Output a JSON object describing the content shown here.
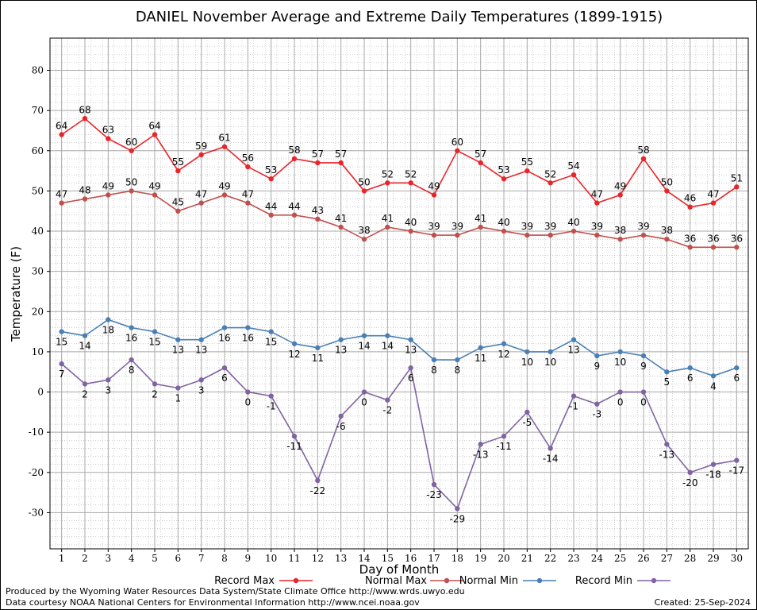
{
  "chart_data": {
    "type": "line",
    "title": "DANIEL November Average and Extreme Daily Temperatures (1899-1915)",
    "xlabel": "Day of Month",
    "ylabel": "Temperature (F)",
    "x": [
      1,
      2,
      3,
      4,
      5,
      6,
      7,
      8,
      9,
      10,
      11,
      12,
      13,
      14,
      15,
      16,
      17,
      18,
      19,
      20,
      21,
      22,
      23,
      24,
      25,
      26,
      27,
      28,
      29,
      30
    ],
    "ylim": [
      -39,
      88
    ],
    "yticks": [
      -30,
      -20,
      -10,
      0,
      10,
      20,
      30,
      40,
      50,
      60,
      70,
      80
    ],
    "grid": true,
    "legend_placement": "bottom",
    "series": [
      {
        "name": "Record Max",
        "color": "#e8252a",
        "values": [
          64,
          68,
          63,
          60,
          64,
          55,
          59,
          61,
          56,
          53,
          58,
          57,
          57,
          50,
          52,
          52,
          49,
          60,
          57,
          53,
          55,
          52,
          54,
          47,
          49,
          58,
          50,
          46,
          47,
          51
        ]
      },
      {
        "name": "Normal Max",
        "color": "#c0504d",
        "values": [
          47,
          48,
          49,
          50,
          49,
          45,
          47,
          49,
          47,
          44,
          44,
          43,
          41,
          38,
          41,
          40,
          39,
          39,
          41,
          40,
          39,
          39,
          40,
          39,
          38,
          39,
          38,
          36,
          36,
          36
        ]
      },
      {
        "name": "Normal Min",
        "color": "#4a7fb5",
        "values": [
          15,
          14,
          18,
          16,
          15,
          13,
          13,
          16,
          16,
          15,
          12,
          11,
          13,
          14,
          14,
          13,
          8,
          8,
          11,
          12,
          10,
          10,
          13,
          9,
          10,
          9,
          5,
          6,
          4,
          6
        ]
      },
      {
        "name": "Record Min",
        "color": "#8064a2",
        "values": [
          7,
          2,
          3,
          8,
          2,
          1,
          3,
          6,
          0,
          -1,
          -11,
          -22,
          -6,
          0,
          -2,
          6,
          -23,
          -29,
          -13,
          -11,
          -5,
          -14,
          -1,
          -3,
          0,
          0,
          -13,
          -20,
          -18,
          -17
        ]
      }
    ]
  },
  "footer": {
    "credit_line1": "Produced by the Wyoming Water Resources Data System/State Climate Office http://www.wrds.uwyo.edu",
    "credit_line2": "Data courtesy NOAA National Centers for Environmental Information http://www.ncei.noaa.gov",
    "created": "Created:  25-Sep-2024"
  }
}
